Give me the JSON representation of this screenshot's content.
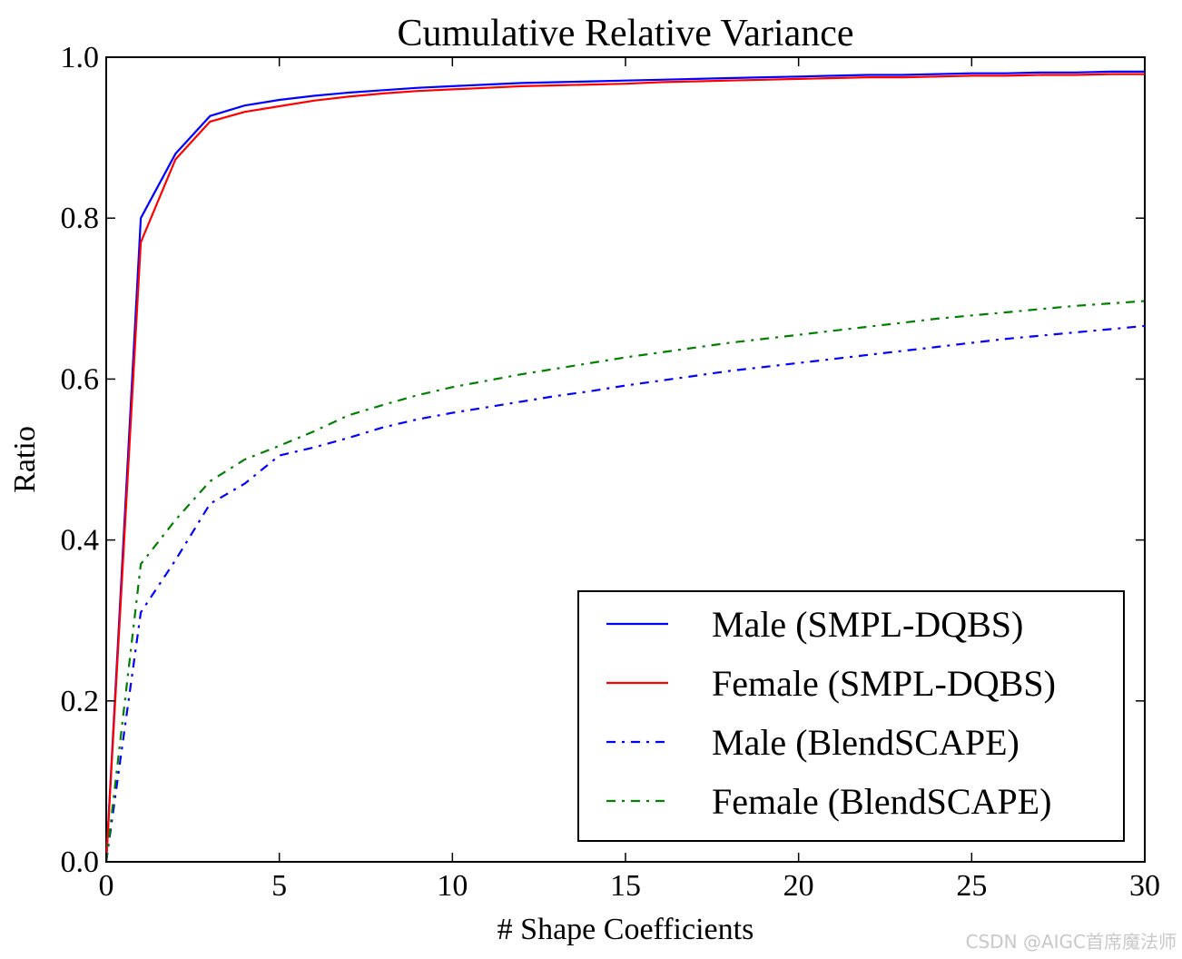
{
  "chart_data": {
    "type": "line",
    "title": "Cumulative Relative Variance",
    "xlabel": "# Shape Coefficients",
    "ylabel": "Ratio",
    "xlim": [
      0,
      30
    ],
    "ylim": [
      0.0,
      1.0
    ],
    "xticks": [
      0,
      5,
      10,
      15,
      20,
      25,
      30
    ],
    "xtick_labels": [
      "0",
      "5",
      "10",
      "15",
      "20",
      "25",
      "30"
    ],
    "yticks": [
      0.0,
      0.2,
      0.4,
      0.6,
      0.8,
      1.0
    ],
    "ytick_labels": [
      "0.0",
      "0.2",
      "0.4",
      "0.6",
      "0.8",
      "1.0"
    ],
    "grid": false,
    "legend_position": "lower-right",
    "x": [
      0,
      1,
      2,
      3,
      4,
      5,
      6,
      7,
      8,
      9,
      10,
      11,
      12,
      13,
      14,
      15,
      16,
      17,
      18,
      19,
      20,
      21,
      22,
      23,
      24,
      25,
      26,
      27,
      28,
      29,
      30
    ],
    "series": [
      {
        "name": "Male (SMPL-DQBS)",
        "color": "#0000ff",
        "style": "solid",
        "values": [
          0.0,
          0.8,
          0.88,
          0.927,
          0.94,
          0.947,
          0.952,
          0.956,
          0.959,
          0.962,
          0.964,
          0.966,
          0.968,
          0.969,
          0.97,
          0.971,
          0.972,
          0.973,
          0.974,
          0.975,
          0.976,
          0.977,
          0.978,
          0.978,
          0.979,
          0.98,
          0.98,
          0.981,
          0.981,
          0.982,
          0.982
        ]
      },
      {
        "name": "Female (SMPL-DQBS)",
        "color": "#ff0000",
        "style": "solid",
        "values": [
          0.0,
          0.77,
          0.873,
          0.92,
          0.932,
          0.939,
          0.946,
          0.951,
          0.955,
          0.958,
          0.96,
          0.962,
          0.964,
          0.965,
          0.966,
          0.967,
          0.969,
          0.97,
          0.971,
          0.972,
          0.973,
          0.974,
          0.975,
          0.975,
          0.976,
          0.977,
          0.977,
          0.978,
          0.978,
          0.979,
          0.979
        ]
      },
      {
        "name": "Male (BlendSCAPE)",
        "color": "#0000ff",
        "style": "dashdot",
        "values": [
          0.0,
          0.31,
          0.375,
          0.445,
          0.47,
          0.505,
          0.515,
          0.527,
          0.54,
          0.55,
          0.558,
          0.565,
          0.572,
          0.579,
          0.585,
          0.592,
          0.598,
          0.604,
          0.61,
          0.615,
          0.62,
          0.625,
          0.63,
          0.635,
          0.64,
          0.645,
          0.65,
          0.654,
          0.658,
          0.662,
          0.666
        ]
      },
      {
        "name": "Female (BlendSCAPE)",
        "color": "#008000",
        "style": "dashdot",
        "values": [
          0.0,
          0.37,
          0.425,
          0.473,
          0.5,
          0.517,
          0.535,
          0.555,
          0.568,
          0.58,
          0.59,
          0.598,
          0.606,
          0.613,
          0.62,
          0.627,
          0.633,
          0.639,
          0.645,
          0.65,
          0.655,
          0.66,
          0.665,
          0.67,
          0.675,
          0.679,
          0.683,
          0.687,
          0.691,
          0.694,
          0.697
        ]
      }
    ]
  },
  "watermark": "CSDN @AIGC首席魔法师"
}
